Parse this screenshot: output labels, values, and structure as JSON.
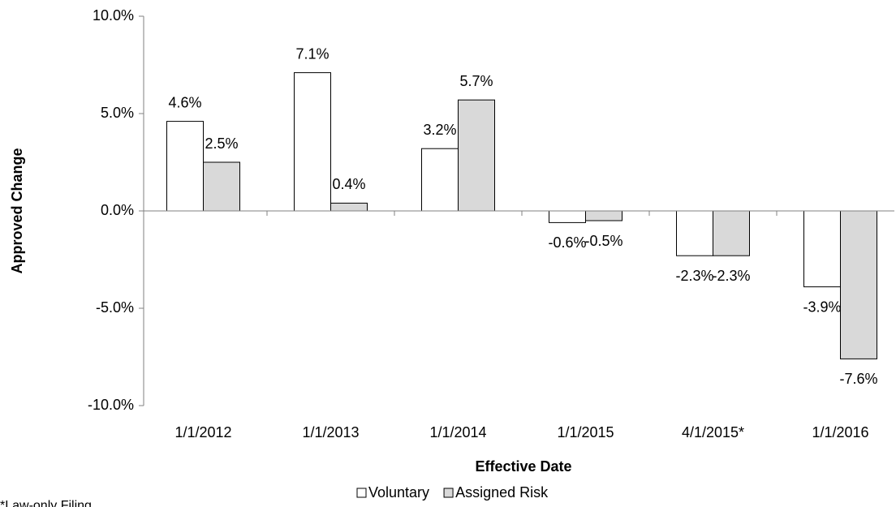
{
  "chart_data": {
    "type": "bar",
    "y_label": "Approved Change",
    "x_label": "Effective Date",
    "footnote": "*Law-only Filing",
    "categories": [
      "1/1/2012",
      "1/1/2013",
      "1/1/2014",
      "1/1/2015",
      "4/1/2015*",
      "1/1/2016"
    ],
    "series": [
      {
        "name": "Voluntary",
        "color": "#ffffff",
        "values": [
          4.6,
          7.1,
          3.2,
          -0.6,
          -2.3,
          -3.9
        ],
        "value_labels": [
          "4.6%",
          "7.1%",
          "3.2%",
          "-0.6%",
          "-2.3%",
          "-3.9%"
        ]
      },
      {
        "name": "Assigned Risk",
        "color": "#d9d9d9",
        "values": [
          2.5,
          0.4,
          5.7,
          -0.5,
          -2.3,
          -7.6
        ],
        "value_labels": [
          "2.5%",
          "0.4%",
          "5.7%",
          "-0.5%",
          "-2.3%",
          "-7.6%"
        ]
      }
    ],
    "ylim": [
      -10,
      10
    ],
    "yticks": [
      {
        "value": -10,
        "label": "-10.0%"
      },
      {
        "value": -5,
        "label": "-5.0%"
      },
      {
        "value": 0,
        "label": "0.0%"
      },
      {
        "value": 5,
        "label": "5.0%"
      },
      {
        "value": 10,
        "label": "10.0%"
      }
    ],
    "legend": "bottom"
  }
}
